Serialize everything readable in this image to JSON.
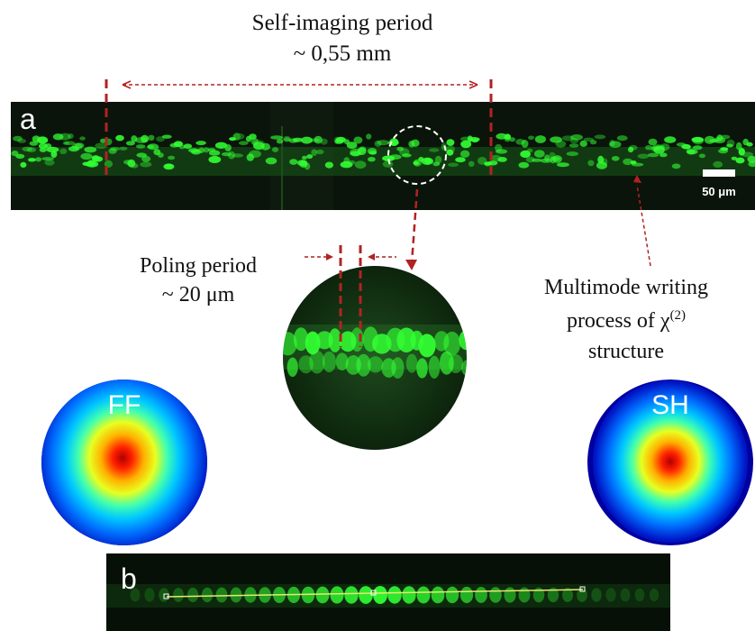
{
  "figure": {
    "panel_a": {
      "label": "a",
      "scale_bar_label": "50 μm",
      "green_color": "#33ff33",
      "background_color": "#0a140a"
    },
    "panel_b": {
      "label": "b"
    },
    "annotations": {
      "self_imaging_title": "Self-imaging period",
      "self_imaging_value": "~ 0,55 mm",
      "poling_title": "Poling period",
      "poling_value": "~ 20 μm",
      "multimode_line1": "Multimode writing",
      "multimode_line2": "process of",
      "multimode_chi": "χ",
      "multimode_chi_sup": "(2)",
      "multimode_line3": "structure",
      "marker_color": "#b22222"
    },
    "beam_profiles": {
      "ff_label": "FF",
      "sh_label": "SH"
    }
  }
}
